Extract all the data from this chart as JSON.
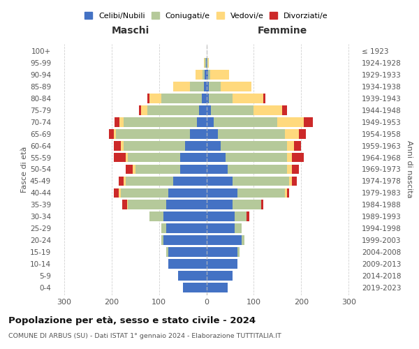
{
  "age_groups": [
    "0-4",
    "5-9",
    "10-14",
    "15-19",
    "20-24",
    "25-29",
    "30-34",
    "35-39",
    "40-44",
    "45-49",
    "50-54",
    "55-59",
    "60-64",
    "65-69",
    "70-74",
    "75-79",
    "80-84",
    "85-89",
    "90-94",
    "95-99",
    "100+"
  ],
  "birth_years": [
    "2019-2023",
    "2014-2018",
    "2009-2013",
    "2004-2008",
    "1999-2003",
    "1994-1998",
    "1989-1993",
    "1984-1988",
    "1979-1983",
    "1974-1978",
    "1969-1973",
    "1964-1968",
    "1959-1963",
    "1954-1958",
    "1949-1953",
    "1944-1948",
    "1939-1943",
    "1934-1938",
    "1929-1933",
    "1924-1928",
    "≤ 1923"
  ],
  "male": {
    "celibi": [
      50,
      60,
      80,
      80,
      90,
      85,
      90,
      85,
      80,
      70,
      55,
      55,
      45,
      35,
      20,
      15,
      10,
      5,
      3,
      1,
      0
    ],
    "coniugati": [
      0,
      0,
      0,
      5,
      5,
      10,
      30,
      80,
      100,
      100,
      95,
      110,
      130,
      155,
      155,
      110,
      85,
      30,
      5,
      2,
      0
    ],
    "vedovi": [
      0,
      0,
      0,
      0,
      0,
      0,
      0,
      2,
      5,
      5,
      5,
      5,
      5,
      5,
      8,
      12,
      25,
      35,
      15,
      2,
      0
    ],
    "divorziati": [
      0,
      0,
      0,
      0,
      0,
      0,
      0,
      10,
      10,
      10,
      15,
      25,
      15,
      10,
      10,
      5,
      5,
      0,
      0,
      0,
      0
    ]
  },
  "female": {
    "nubili": [
      45,
      55,
      65,
      65,
      75,
      60,
      60,
      55,
      65,
      55,
      45,
      40,
      30,
      25,
      15,
      10,
      5,
      5,
      3,
      1,
      0
    ],
    "coniugate": [
      0,
      0,
      0,
      5,
      5,
      15,
      25,
      60,
      100,
      120,
      125,
      130,
      140,
      140,
      135,
      90,
      50,
      25,
      5,
      2,
      0
    ],
    "vedove": [
      0,
      0,
      0,
      0,
      0,
      0,
      0,
      0,
      5,
      5,
      10,
      10,
      15,
      30,
      55,
      60,
      65,
      65,
      40,
      2,
      0
    ],
    "divorziate": [
      0,
      0,
      0,
      0,
      0,
      0,
      5,
      5,
      5,
      10,
      15,
      25,
      15,
      15,
      20,
      10,
      5,
      0,
      0,
      0,
      0
    ]
  },
  "colors": {
    "celibi": "#4472c4",
    "coniugati": "#b5c99a",
    "vedovi": "#ffd97d",
    "divorziati": "#cc2929"
  },
  "xlim": 320,
  "title": "Popolazione per età, sesso e stato civile - 2024",
  "subtitle": "COMUNE DI ARBUS (SU) - Dati ISTAT 1° gennaio 2024 - Elaborazione TUTTITALIA.IT",
  "xlabel_left": "Maschi",
  "xlabel_right": "Femmine",
  "ylabel_left": "Fasce di età",
  "ylabel_right": "Anni di nascita",
  "legend_labels": [
    "Celibi/Nubili",
    "Coniugati/e",
    "Vedovi/e",
    "Divorziati/e"
  ],
  "bg_color": "#ffffff",
  "bar_height": 0.82
}
